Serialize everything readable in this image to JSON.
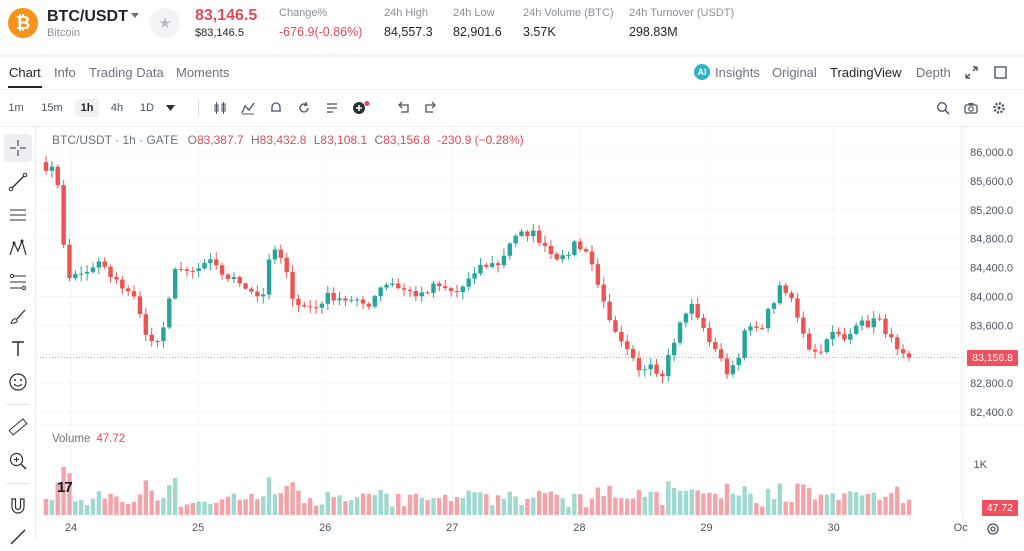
{
  "header": {
    "coin_symbol": "₿",
    "pair": "BTC/USDT",
    "coin_name": "Bitcoin",
    "price": "83,146.5",
    "price_fiat": "$83,146.5",
    "stats": [
      {
        "label": "Change%",
        "value": "-676.9(-0.86%)",
        "color": "red"
      },
      {
        "label": "24h High",
        "value": "84,557.3"
      },
      {
        "label": "24h Low",
        "value": "82,901.6"
      },
      {
        "label": "24h Volume (BTC)",
        "value": "3.57K"
      },
      {
        "label": "24h Turnover (USDT)",
        "value": "298.83M"
      }
    ]
  },
  "tabs": {
    "left": [
      "Chart",
      "Info",
      "Trading Data",
      "Moments"
    ],
    "active": "Chart",
    "right": [
      "Insights",
      "Original",
      "TradingView",
      "Depth"
    ],
    "right_active": "TradingView"
  },
  "toolbar": {
    "intervals": [
      "1m",
      "15m",
      "1h",
      "4h",
      "1D"
    ],
    "selected_interval": "1h"
  },
  "legend": {
    "symbol": "BTC/USDT · 1h · GATE",
    "o": "83,387.7",
    "h": "83,432.8",
    "l": "83,108.1",
    "c": "83,156.8",
    "change": "-230.9 (−0.28%)",
    "o_key": "O",
    "h_key": "H",
    "l_key": "L",
    "c_key": "C"
  },
  "volume_legend": {
    "label": "Volume",
    "value": "47.72"
  },
  "tags": {
    "price": "83,156.8",
    "volume": "47.72"
  },
  "tv_logo": "17",
  "colors": {
    "up": "#26a69a",
    "down": "#ef5350",
    "accent": "#f7931a"
  },
  "chart_data": {
    "type": "candlestick",
    "title": "BTC/USDT · 1h · GATE",
    "y_axis_ticks": [
      "86,000.0",
      "85,600.0",
      "85,200.0",
      "84,800.0",
      "84,400.0",
      "84,000.0",
      "83,600.0",
      "83,200.0",
      "82,800.0",
      "82,400.0"
    ],
    "ylim": [
      82300,
      86150
    ],
    "x_axis_ticks": [
      "24",
      "25",
      "26",
      "27",
      "28",
      "29",
      "30",
      "Oc"
    ],
    "volume_ticks": [
      "1K"
    ],
    "last_price": 83156.8,
    "price_anchors": [
      85800,
      85700,
      84200,
      84350,
      84300,
      84500,
      84250,
      84150,
      84050,
      83600,
      83300,
      83550,
      84450,
      84300,
      84350,
      84500,
      84350,
      84250,
      84200,
      84100,
      83950,
      84700,
      84450,
      83950,
      83850,
      83850,
      84000,
      84000,
      83950,
      83900,
      83900,
      84150,
      84200,
      84100,
      84050,
      84000,
      84150,
      84100,
      84050,
      84150,
      84400,
      84450,
      84450,
      84750,
      84850,
      84900,
      84750,
      84600,
      84500,
      84750,
      84650,
      84300,
      83700,
      83400,
      83200,
      83000,
      83100,
      82900,
      83300,
      83700,
      83900,
      83500,
      83300,
      82950,
      83100,
      83600,
      83500,
      83800,
      84100,
      84000,
      83600,
      83200,
      83300,
      83500,
      83400,
      83650,
      83600,
      83700,
      83500,
      83200,
      83100
    ],
    "volume": {
      "label": "Volume",
      "last": 47.72,
      "tick_1k": 1000
    }
  }
}
